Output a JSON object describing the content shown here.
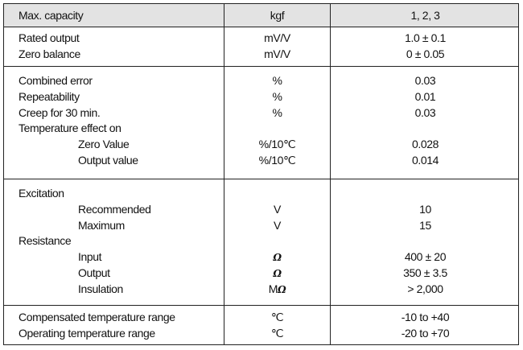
{
  "header": {
    "parameter": "Max. capacity",
    "unit": "kgf",
    "value": "1, 2, 3"
  },
  "groups": [
    {
      "rows": [
        {
          "label": "Rated output",
          "unit": "mV/V",
          "value": "1.0 ± 0.1"
        },
        {
          "label": "Zero balance",
          "unit": "mV/V",
          "value": "0 ± 0.05"
        }
      ]
    },
    {
      "rows": [
        {
          "label": "Combined error",
          "unit": "%",
          "value": "0.03"
        },
        {
          "label": "Repeatability",
          "unit": "%",
          "value": "0.01"
        },
        {
          "label": "Creep for 30 min.",
          "unit": "%",
          "value": "0.03"
        },
        {
          "label": "Temperature effect on",
          "unit": "",
          "value": ""
        },
        {
          "label": "Zero Value",
          "unit": "%/10℃",
          "value": "0.028",
          "sub": true
        },
        {
          "label": "Output value",
          "unit": "%/10℃",
          "value": "0.014",
          "sub": true
        }
      ]
    },
    {
      "rows": [
        {
          "label": "Excitation",
          "unit": "",
          "value": ""
        },
        {
          "label": "Recommended",
          "unit": "V",
          "value": "10",
          "sub": true
        },
        {
          "label": "Maximum",
          "unit": "V",
          "value": "15",
          "sub": true
        },
        {
          "label": "Resistance",
          "unit": "",
          "value": ""
        },
        {
          "label": "Input",
          "unit": "Ω",
          "value": "400 ± 20",
          "sub": true
        },
        {
          "label": "Output",
          "unit": "Ω",
          "value": "350 ± 3.5",
          "sub": true
        },
        {
          "label": "Insulation",
          "unit": "MΩ",
          "value": "> 2,000",
          "sub": true
        }
      ]
    },
    {
      "rows": [
        {
          "label": "Compensated temperature range",
          "unit": "℃",
          "value": "-10 to +40"
        },
        {
          "label": "Operating temperature range",
          "unit": "℃",
          "value": "-20 to +70"
        }
      ]
    }
  ]
}
